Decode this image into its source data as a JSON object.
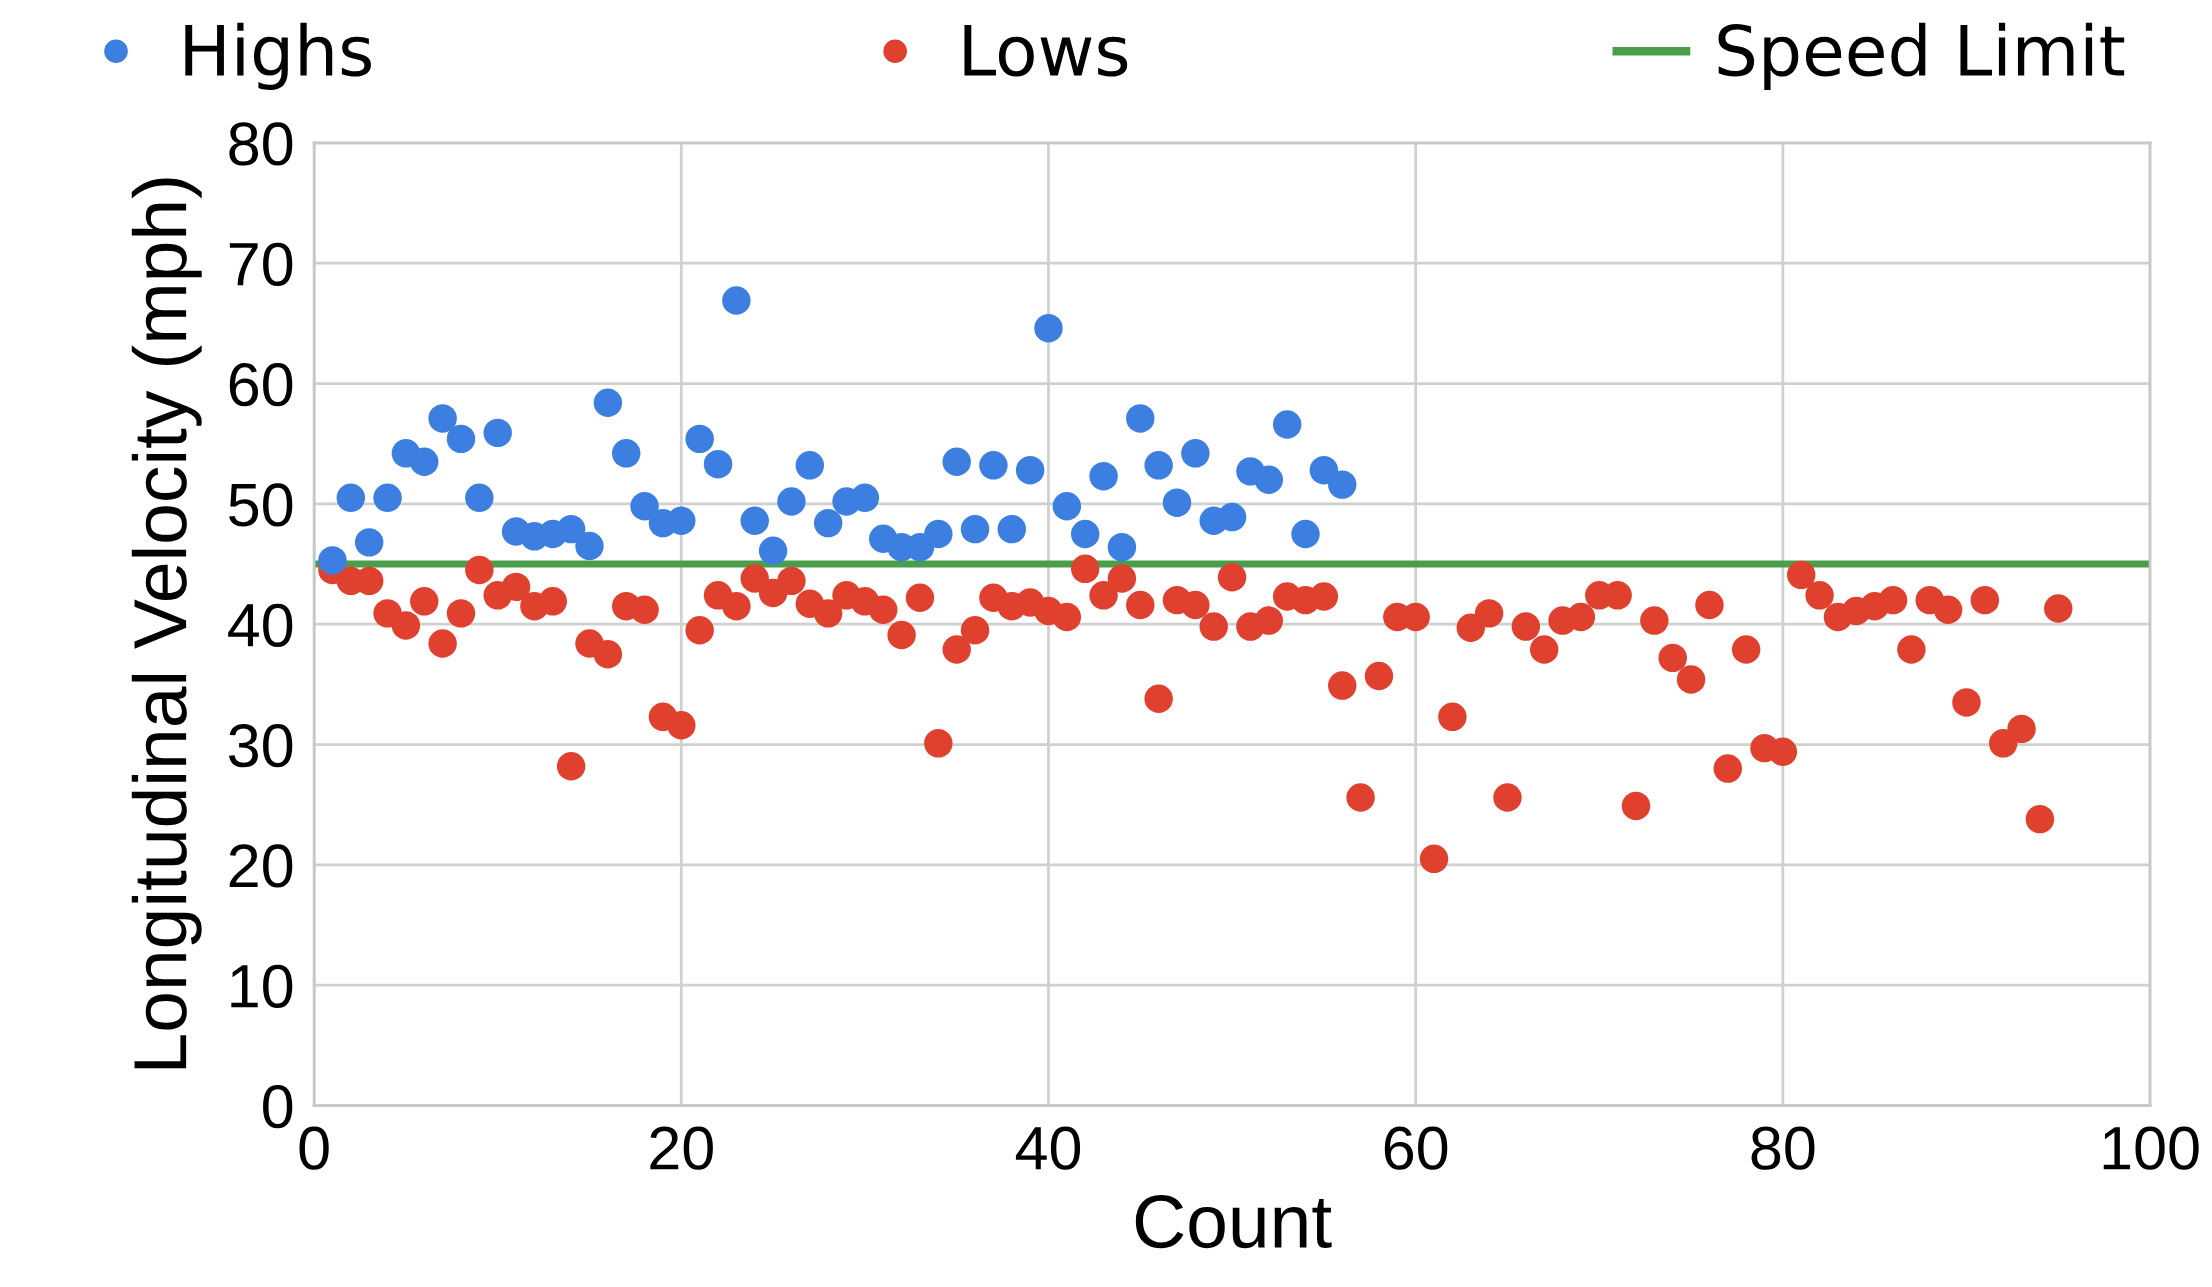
{
  "chart_data": {
    "type": "scatter",
    "xlabel": "Count",
    "ylabel": "Longitudinal Velocity (mph)",
    "xlim": [
      0,
      100
    ],
    "ylim": [
      0,
      80
    ],
    "xticks": [
      0,
      20,
      40,
      60,
      80,
      100
    ],
    "yticks": [
      0,
      10,
      20,
      30,
      40,
      50,
      60,
      70,
      80
    ],
    "grid": true,
    "legend": "top",
    "marker": "circle",
    "series": [
      {
        "name": "Highs",
        "color": "#3c7fe0",
        "x": [
          1,
          2,
          3,
          4,
          5,
          6,
          7,
          8,
          9,
          10,
          11,
          12,
          13,
          14,
          15,
          16,
          17,
          18,
          19,
          20,
          21,
          22,
          23,
          24,
          25,
          26,
          27,
          28,
          29,
          30,
          31,
          32,
          33,
          34,
          35,
          36,
          37,
          38,
          39,
          40,
          41,
          42,
          43,
          44,
          45,
          46,
          47,
          48,
          49,
          50,
          51,
          52,
          53,
          54,
          55,
          56
        ],
        "values": [
          45.3,
          50.5,
          46.8,
          50.5,
          54.2,
          53.5,
          57.1,
          55.4,
          50.5,
          55.9,
          47.7,
          47.3,
          47.5,
          47.9,
          46.5,
          58.4,
          54.2,
          49.8,
          48.4,
          48.6,
          55.4,
          53.3,
          66.9,
          48.6,
          46.1,
          50.2,
          53.2,
          48.4,
          50.2,
          50.5,
          47.1,
          46.4,
          46.4,
          47.5,
          53.5,
          47.9,
          53.2,
          47.9,
          52.8,
          64.6,
          49.8,
          47.5,
          52.3,
          46.4,
          57.1,
          53.2,
          50.1,
          54.2,
          48.6,
          48.9,
          52.7,
          52.0,
          56.6,
          47.5,
          52.8,
          51.6
        ]
      },
      {
        "name": "Lows",
        "color": "#e0402e",
        "x": [
          1,
          2,
          3,
          4,
          5,
          6,
          7,
          8,
          9,
          10,
          11,
          12,
          13,
          14,
          15,
          16,
          17,
          18,
          19,
          20,
          21,
          22,
          23,
          24,
          25,
          26,
          27,
          28,
          29,
          30,
          31,
          32,
          33,
          34,
          35,
          36,
          37,
          38,
          39,
          40,
          41,
          42,
          43,
          44,
          45,
          46,
          47,
          48,
          49,
          50,
          51,
          52,
          53,
          54,
          55,
          56,
          57,
          58,
          59,
          60,
          61,
          62,
          63,
          64,
          65,
          66,
          67,
          68,
          69,
          70,
          71,
          72,
          73,
          74,
          75,
          76,
          77,
          78,
          79,
          80,
          81,
          82,
          83,
          84,
          85,
          86,
          87,
          88,
          89,
          90,
          91,
          92,
          93,
          94,
          95
        ],
        "values": [
          44.5,
          43.6,
          43.6,
          40.9,
          39.9,
          41.9,
          38.4,
          40.9,
          44.5,
          42.4,
          43.1,
          41.5,
          41.9,
          28.2,
          38.4,
          37.5,
          41.5,
          41.2,
          32.3,
          31.6,
          39.5,
          42.4,
          41.5,
          43.8,
          42.6,
          43.6,
          41.7,
          40.9,
          42.4,
          41.9,
          41.2,
          39.1,
          42.2,
          30.1,
          37.9,
          39.5,
          42.2,
          41.5,
          41.8,
          41.1,
          40.6,
          44.6,
          42.4,
          43.8,
          41.6,
          33.8,
          42.0,
          41.6,
          39.8,
          43.9,
          39.8,
          40.3,
          42.3,
          42.0,
          42.3,
          34.9,
          25.6,
          35.7,
          40.6,
          40.6,
          20.5,
          32.3,
          39.7,
          40.9,
          25.6,
          39.8,
          37.9,
          40.3,
          40.6,
          42.4,
          42.4,
          24.9,
          40.3,
          37.2,
          35.4,
          41.6,
          28.0,
          37.9,
          29.7,
          29.4,
          44.1,
          42.4,
          40.6,
          41.1,
          41.5,
          42.0,
          37.9,
          42.0,
          41.2,
          33.5,
          42.0,
          30.1,
          31.3,
          23.8,
          41.3
        ]
      },
      {
        "name": "Speed Limit",
        "type": "line",
        "color": "#4a9e4a",
        "x": [
          0,
          100
        ],
        "values": [
          45,
          45
        ],
        "marker": "none"
      }
    ]
  }
}
